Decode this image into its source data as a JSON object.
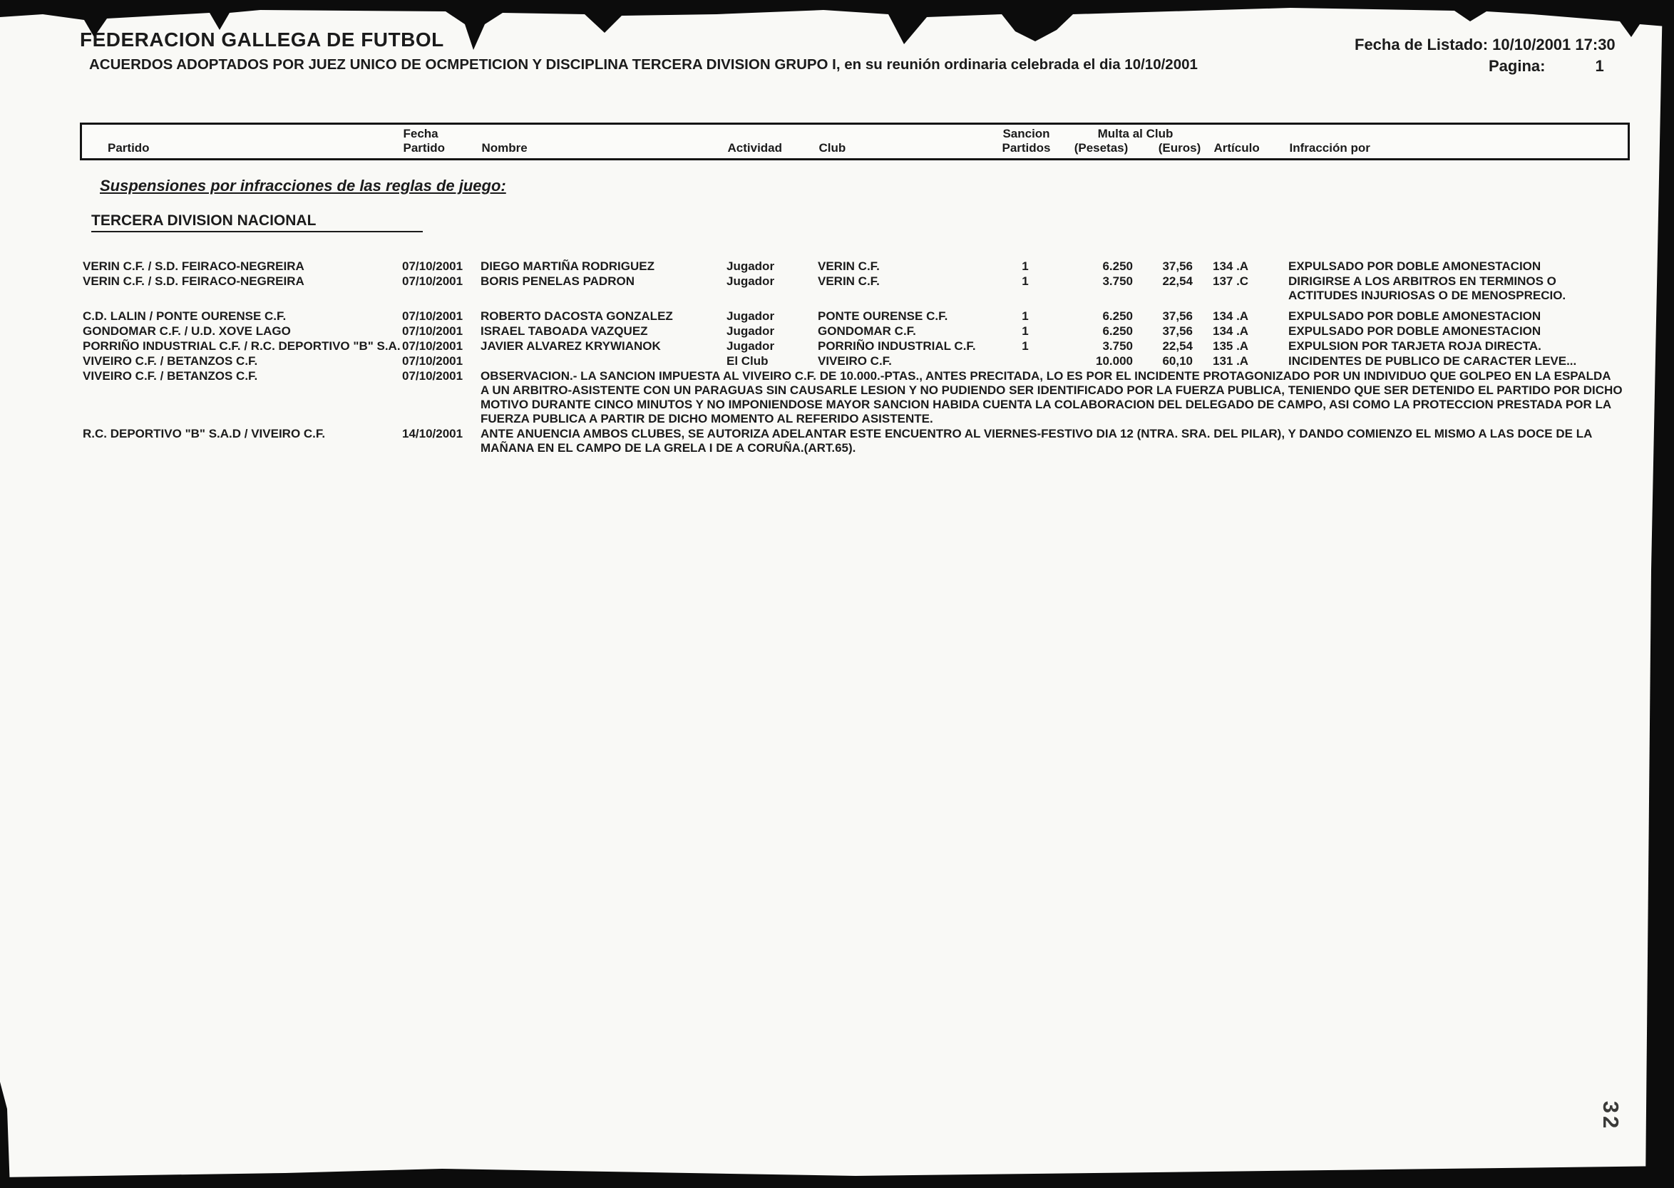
{
  "header": {
    "org": "FEDERACION GALLEGA DE FUTBOL",
    "subtitle": "ACUERDOS ADOPTADOS POR JUEZ UNICO DE OCMPETICION Y DISCIPLINA TERCERA DIVISION GRUPO I, en su reunión ordinaria celebrada el dia 10/10/2001",
    "listing_date_label": "Fecha de Listado:",
    "listing_date_value": "10/10/2001 17:30",
    "page_label": "Pagina:",
    "page_value": "1"
  },
  "table": {
    "headers": {
      "fecha_top": "Fecha",
      "sancion_top": "Sancion",
      "multa_top": "Multa al Club",
      "partido": "Partido",
      "fecha_partido": "Partido",
      "nombre": "Nombre",
      "actividad": "Actividad",
      "club": "Club",
      "sancion_partidos": "Partidos",
      "pesetas": "(Pesetas)",
      "euros": "(Euros)",
      "articulo": "Artículo",
      "infraccion": "Infracción por"
    },
    "section_title": "Suspensiones por infracciones de las reglas de juego:",
    "division": "TERCERA DIVISION NACIONAL",
    "rows": [
      {
        "partido": "VERIN C.F. / S.D. FEIRACO-NEGREIRA",
        "fecha": "07/10/2001",
        "nombre": "DIEGO MARTIÑA RODRIGUEZ",
        "actividad": "Jugador",
        "club": "VERIN C.F.",
        "sancion": "1",
        "pesetas": "6.250",
        "euros": "37,56",
        "articulo": "134 .A",
        "infraccion": [
          "EXPULSADO POR DOBLE AMONESTACION"
        ]
      },
      {
        "partido": "VERIN C.F. / S.D. FEIRACO-NEGREIRA",
        "fecha": "07/10/2001",
        "nombre": "BORIS PENELAS PADRON",
        "actividad": "Jugador",
        "club": "VERIN C.F.",
        "sancion": "1",
        "pesetas": "3.750",
        "euros": "22,54",
        "articulo": "137 .C",
        "infraccion": [
          "DIRIGIRSE A LOS ARBITROS EN TERMINOS O",
          "ACTITUDES INJURIOSAS O DE MENOSPRECIO."
        ]
      },
      {
        "partido": "C.D. LALIN / PONTE OURENSE C.F.",
        "fecha": "07/10/2001",
        "nombre": "ROBERTO DACOSTA GONZALEZ",
        "actividad": "Jugador",
        "club": "PONTE OURENSE C.F.",
        "sancion": "1",
        "pesetas": "6.250",
        "euros": "37,56",
        "articulo": "134 .A",
        "infraccion": [
          "EXPULSADO POR DOBLE AMONESTACION"
        ],
        "gap_before": true
      },
      {
        "partido": "GONDOMAR C.F. / U.D. XOVE LAGO",
        "fecha": "07/10/2001",
        "nombre": "ISRAEL TABOADA VAZQUEZ",
        "actividad": "Jugador",
        "club": "GONDOMAR C.F.",
        "sancion": "1",
        "pesetas": "6.250",
        "euros": "37,56",
        "articulo": "134 .A",
        "infraccion": [
          "EXPULSADO POR DOBLE AMONESTACION"
        ]
      },
      {
        "partido": "PORRIÑO INDUSTRIAL C.F. / R.C. DEPORTIVO \"B\" S.A.",
        "fecha": "07/10/2001",
        "nombre": "JAVIER ALVAREZ KRYWIANOK",
        "actividad": "Jugador",
        "club": "PORRIÑO INDUSTRIAL C.F.",
        "sancion": "1",
        "pesetas": "3.750",
        "euros": "22,54",
        "articulo": "135 .A",
        "infraccion": [
          "EXPULSION POR TARJETA ROJA DIRECTA."
        ]
      },
      {
        "partido": "VIVEIRO C.F. / BETANZOS C.F.",
        "fecha": "07/10/2001",
        "nombre": "",
        "actividad": "El Club",
        "club": "VIVEIRO C.F.",
        "sancion": "",
        "pesetas": "10.000",
        "euros": "60,10",
        "articulo": "131 .A",
        "infraccion": [
          "INCIDENTES DE PUBLICO DE CARACTER LEVE..."
        ]
      },
      {
        "partido": "VIVEIRO C.F. / BETANZOS C.F.",
        "fecha": "07/10/2001",
        "wide_lines": [
          "OBSERVACION.- LA SANCION IMPUESTA AL VIVEIRO C.F. DE 10.000.-PTAS., ANTES PRECITADA, LO ES POR EL INCIDENTE PROTAGONIZADO POR UN INDIVIDUO QUE GOLPEO EN LA ESPALDA",
          "A UN ARBITRO-ASISTENTE CON UN PARAGUAS SIN CAUSARLE LESION Y NO PUDIENDO SER IDENTIFICADO POR LA FUERZA PUBLICA, TENIENDO QUE SER DETENIDO EL PARTIDO POR DICHO",
          "MOTIVO DURANTE CINCO MINUTOS Y NO IMPONIENDOSE MAYOR SANCION HABIDA CUENTA LA COLABORACION DEL DELEGADO DE CAMPO, ASI COMO LA PROTECCION PRESTADA POR LA",
          "FUERZA PUBLICA A PARTIR DE DICHO MOMENTO AL REFERIDO ASISTENTE."
        ]
      },
      {
        "partido": "R.C. DEPORTIVO \"B\" S.A.D / VIVEIRO C.F.",
        "fecha": "14/10/2001",
        "wide_lines": [
          "ANTE ANUENCIA AMBOS CLUBES, SE AUTORIZA ADELANTAR ESTE ENCUENTRO AL VIERNES-FESTIVO DIA 12 (NTRA. SRA. DEL PILAR), Y DANDO COMIENZO EL MISMO  A LAS DOCE DE LA",
          "MAÑANA EN EL CAMPO DE LA GRELA I DE A CORUÑA.(ART.65)."
        ]
      }
    ]
  },
  "handwritten_page_number": "32"
}
